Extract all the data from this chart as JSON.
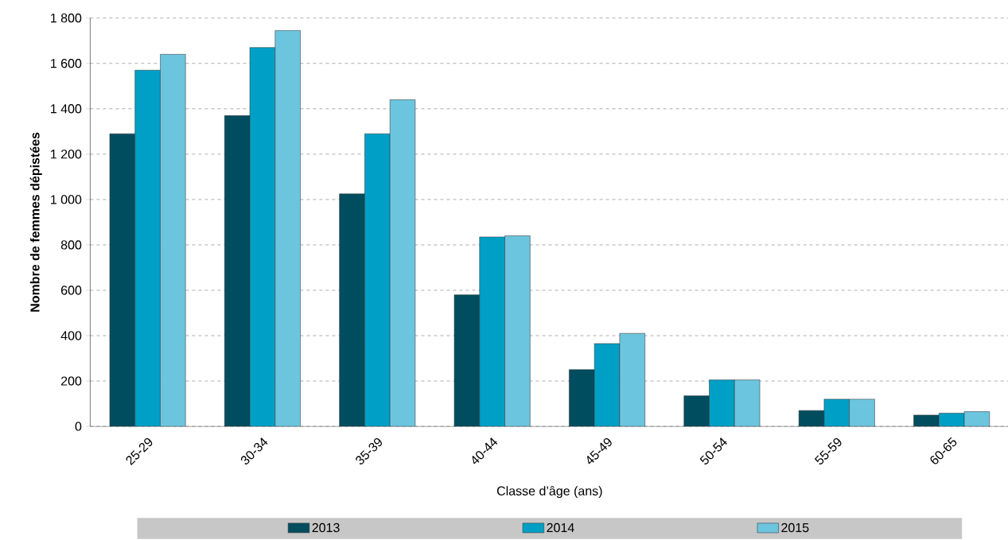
{
  "chart_data": {
    "type": "bar",
    "xlabel": "Classe d’âge (ans)",
    "ylabel": "Nombre de femmes dépistées",
    "categories": [
      "25-29",
      "30-34",
      "35-39",
      "40-44",
      "45-49",
      "50-54",
      "55-59",
      "60-65"
    ],
    "series": [
      {
        "name": "2013",
        "color": "#004d5f",
        "values": [
          1290,
          1370,
          1025,
          580,
          250,
          135,
          70,
          50
        ]
      },
      {
        "name": "2014",
        "color": "#00a0c6",
        "values": [
          1570,
          1670,
          1290,
          835,
          365,
          205,
          120,
          58
        ]
      },
      {
        "name": "2015",
        "color": "#6cc5de",
        "values": [
          1640,
          1745,
          1440,
          840,
          410,
          205,
          120,
          65
        ]
      }
    ],
    "ylim": [
      0,
      1800
    ],
    "yticks": [
      0,
      200,
      400,
      600,
      800,
      {
        "value": 1000,
        "label": "1 000"
      },
      {
        "value": 1200,
        "label": "1 200"
      },
      {
        "value": 1400,
        "label": "1 400"
      },
      {
        "value": 1600,
        "label": "1 600"
      },
      {
        "value": 1800,
        "label": "1 800"
      }
    ],
    "grid": "y",
    "legend": "bottom"
  }
}
